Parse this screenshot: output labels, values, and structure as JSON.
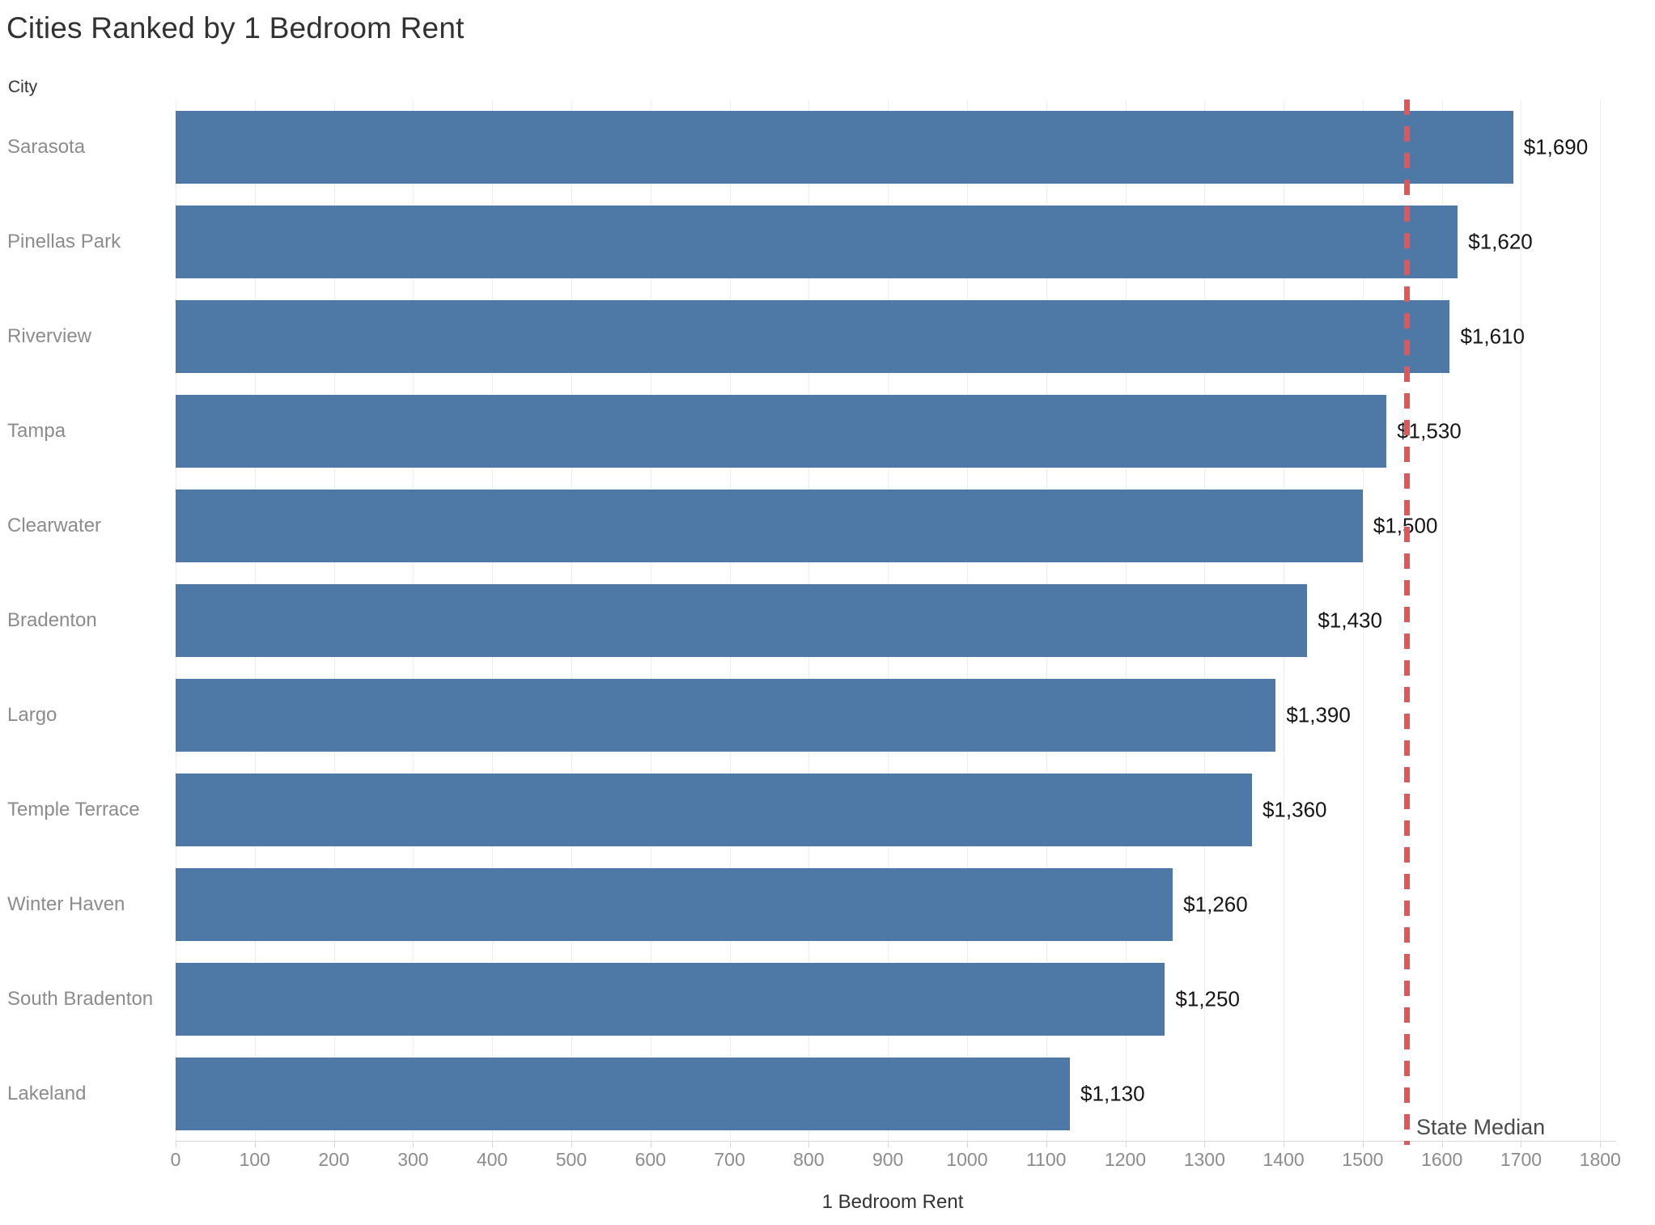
{
  "title": "Cities Ranked by 1 Bedroom Rent",
  "axes": {
    "y_header": "City",
    "x_title": "1 Bedroom Rent",
    "x_min": 0,
    "x_max": 1800,
    "x_tick_step": 100
  },
  "reference_line": {
    "label": "State Median",
    "value": 1555,
    "color": "#e15759",
    "style": "dashed"
  },
  "colors": {
    "bar": "#4e79a7",
    "reference": "#e15759",
    "gridline": "#ededed",
    "axis": "#d7d7d7",
    "category_label": "#8c8c8c",
    "value_label": "#151515",
    "title": "#323232"
  },
  "chart_data": {
    "type": "bar",
    "orientation": "horizontal",
    "title": "Cities Ranked by 1 Bedroom Rent",
    "xlabel": "1 Bedroom Rent",
    "ylabel": "City",
    "xlim": [
      0,
      1800
    ],
    "grid": true,
    "bar_color": "#4e79a7",
    "categories": [
      "Sarasota",
      "Pinellas Park",
      "Riverview",
      "Tampa",
      "Clearwater",
      "Bradenton",
      "Largo",
      "Temple Terrace",
      "Winter Haven",
      "South Bradenton",
      "Lakeland"
    ],
    "values": [
      1690,
      1620,
      1610,
      1530,
      1500,
      1430,
      1390,
      1360,
      1260,
      1250,
      1130
    ],
    "value_labels": [
      "$1,690",
      "$1,620",
      "$1,610",
      "$1,530",
      "$1,500",
      "$1,430",
      "$1,390",
      "$1,360",
      "$1,260",
      "$1,250",
      "$1,130"
    ],
    "reference_line": {
      "label": "State Median",
      "value": 1555
    }
  }
}
